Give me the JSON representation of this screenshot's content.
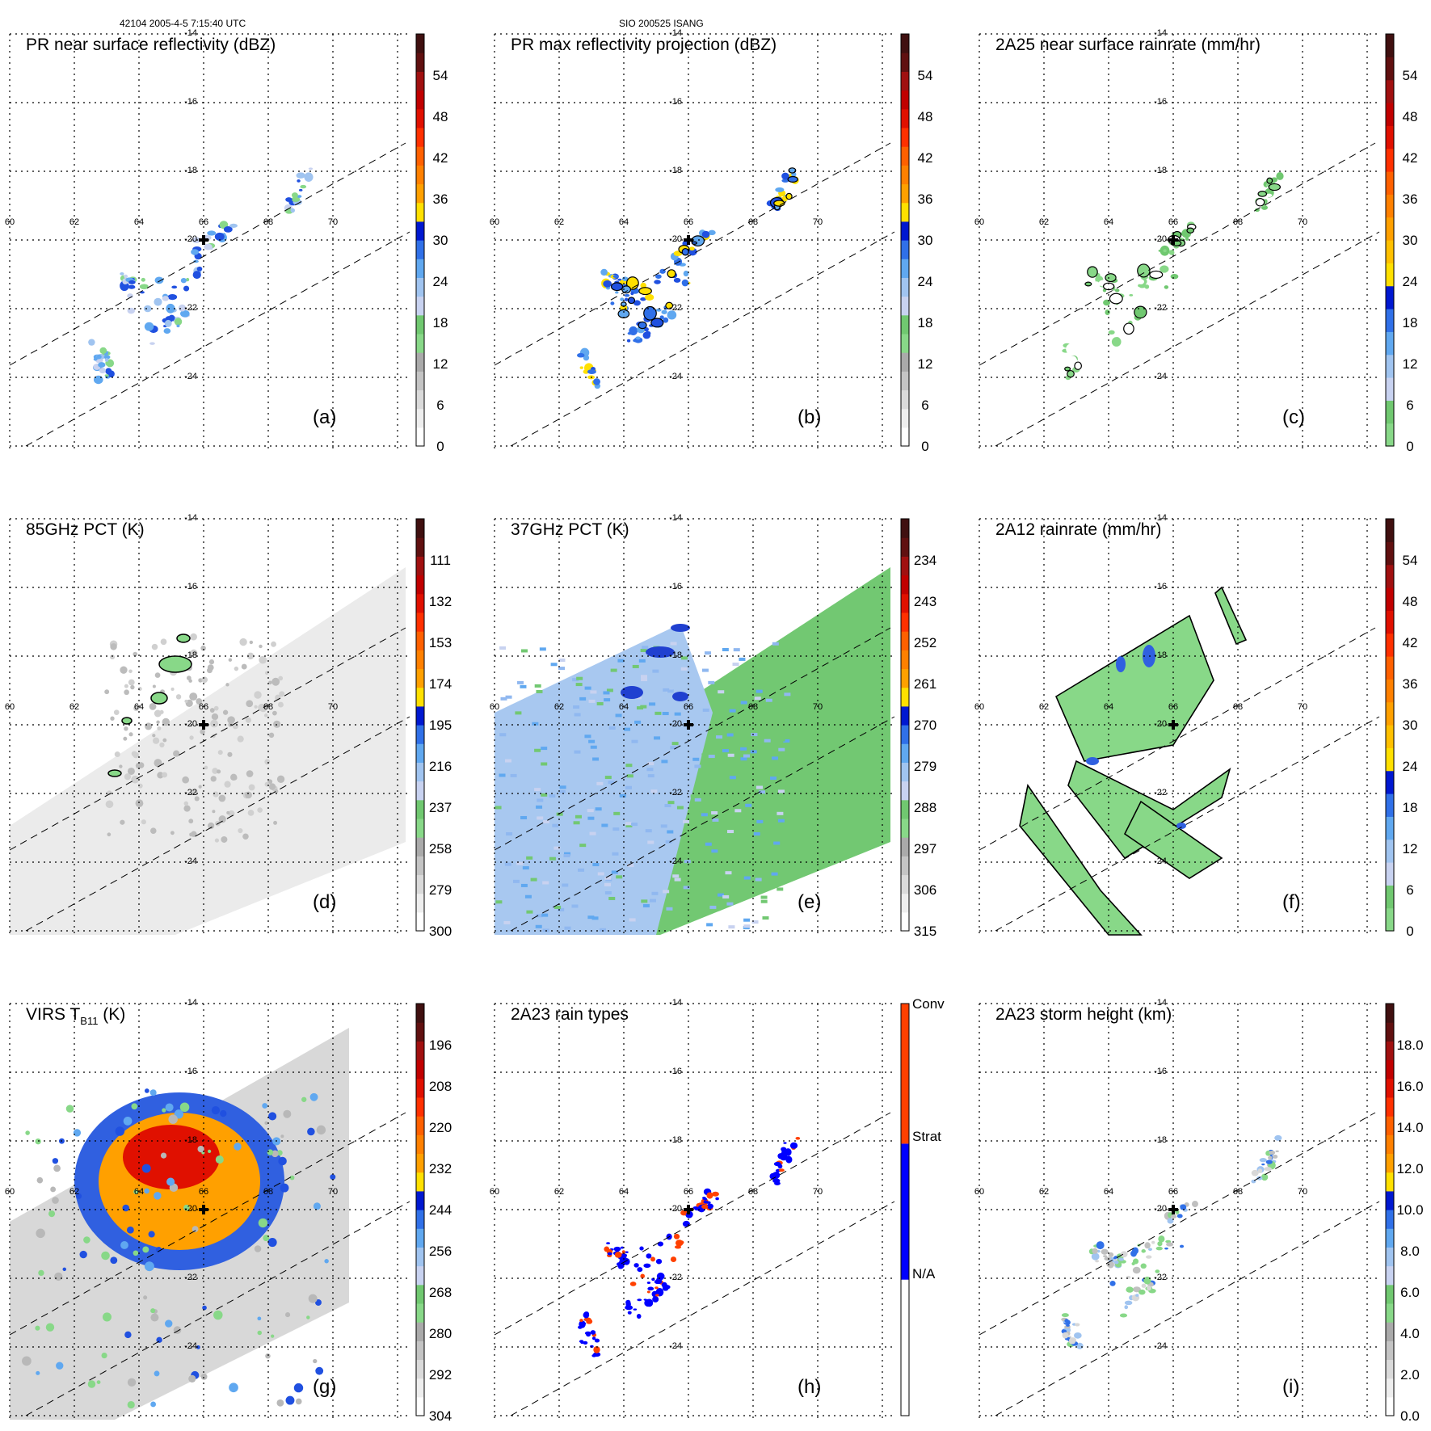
{
  "header": {
    "left": "42104 2005-4-5 7:15:40 UTC",
    "center": "SIO 200525 ISANG"
  },
  "map_labels": {
    "lon_ticks": [
      "60",
      "62",
      "64",
      "66",
      "68",
      "70"
    ],
    "lat_ticks": [
      "-14",
      "-16",
      "-18",
      "-20",
      "-22",
      "-24"
    ],
    "center_marker": "storm-center-cross"
  },
  "colors": {
    "rainbow_scale": [
      "#ffffff",
      "#d8d8d8",
      "#b0b0b0",
      "#88d888",
      "#c8d2f0",
      "#60a8f0",
      "#2050e0",
      "#ffe000",
      "#ffa000",
      "#ff6000",
      "#e01000",
      "#a01010",
      "#501010"
    ],
    "rain_type": {
      "na": "#ffffff",
      "strat": "#0000ff",
      "conv": "#ff4000"
    },
    "contour": "#000000",
    "swath_edge": "#000000"
  },
  "chart_data": [
    {
      "panel": "a",
      "type": "heatmap",
      "title": "PR near surface reflectivity (dBZ)",
      "panel_label": "(a)",
      "colorbar": {
        "ticks": [
          "0",
          "6",
          "12",
          "18",
          "24",
          "30",
          "36",
          "42",
          "48",
          "54"
        ],
        "min": 0,
        "max": 60
      },
      "swath": "PR narrow",
      "note": "scattered echoes 15-30 dBZ along SW-NE bands inside PR swath"
    },
    {
      "panel": "b",
      "type": "heatmap",
      "title": "PR max reflectivity projection (dBZ)",
      "panel_label": "(b)",
      "colorbar": {
        "ticks": [
          "0",
          "6",
          "12",
          "18",
          "24",
          "30",
          "36",
          "42",
          "48",
          "54"
        ],
        "min": 0,
        "max": 60
      },
      "swath": "PR narrow",
      "note": "contoured echoes 20-36 dBZ"
    },
    {
      "panel": "c",
      "type": "heatmap",
      "title": "2A25 near surface rainrate (mm/hr)",
      "panel_label": "(c)",
      "colorbar": {
        "ticks": [
          "0",
          "6",
          "12",
          "18",
          "24",
          "30",
          "36",
          "42",
          "48",
          "54"
        ],
        "min": 0,
        "max": 60
      },
      "swath": "PR narrow",
      "note": "light rain 0-6 mm/hr"
    },
    {
      "panel": "d",
      "type": "heatmap",
      "title": "85GHz PCT (K)",
      "panel_label": "(d)",
      "colorbar": {
        "ticks": [
          "300",
          "279",
          "258",
          "237",
          "216",
          "195",
          "174",
          "153",
          "132",
          "111"
        ],
        "min": 300,
        "max": 90
      },
      "swath": "TMI wide",
      "note": "mostly 270-300 K, small depressions near 237 K"
    },
    {
      "panel": "e",
      "type": "heatmap",
      "title": "37GHz PCT (K)",
      "panel_label": "(e)",
      "colorbar": {
        "ticks": [
          "315",
          "306",
          "297",
          "288",
          "279",
          "270",
          "261",
          "252",
          "243",
          "234"
        ],
        "min": 315,
        "max": 225
      },
      "swath": "TMI wide",
      "note": "west of swath 270-288 K, east side near 288 K"
    },
    {
      "panel": "f",
      "type": "heatmap",
      "title": "2A12 rainrate (mm/hr)",
      "panel_label": "(f)",
      "colorbar": {
        "ticks": [
          "0",
          "6",
          "12",
          "18",
          "24",
          "30",
          "36",
          "42",
          "48",
          "54"
        ],
        "min": 0,
        "max": 60
      },
      "swath": "TMI wide",
      "note": "spiral rain bands 0-6 mm/hr with pockets to 24 mm/hr"
    },
    {
      "panel": "g",
      "type": "heatmap",
      "title": "VIRS T",
      "title_sub": "B11",
      "title_unit": " (K)",
      "panel_label": "(g)",
      "colorbar": {
        "ticks": [
          "304",
          "292",
          "280",
          "268",
          "256",
          "244",
          "232",
          "220",
          "208",
          "196"
        ],
        "min": 304,
        "max": 184
      },
      "swath": "VIRS wide",
      "note": "cold cloud shield 196-232 K NW of center, bands 244-268 K"
    },
    {
      "panel": "h",
      "type": "heatmap",
      "title": "2A23 rain types",
      "panel_label": "(h)",
      "colorbar": {
        "categories": [
          "N/A",
          "Strat",
          "Conv"
        ]
      },
      "swath": "PR narrow",
      "note": "mostly stratiform with few convective pixels"
    },
    {
      "panel": "i",
      "type": "heatmap",
      "title": "2A23 storm height (km)",
      "panel_label": "(i)",
      "colorbar": {
        "ticks": [
          "0.0",
          "2.0",
          "4.0",
          "6.0",
          "8.0",
          "10.0",
          "12.0",
          "14.0",
          "16.0",
          "18.0"
        ],
        "min": 0,
        "max": 20
      },
      "swath": "PR narrow",
      "note": "storm heights mostly 2-8 km"
    }
  ]
}
